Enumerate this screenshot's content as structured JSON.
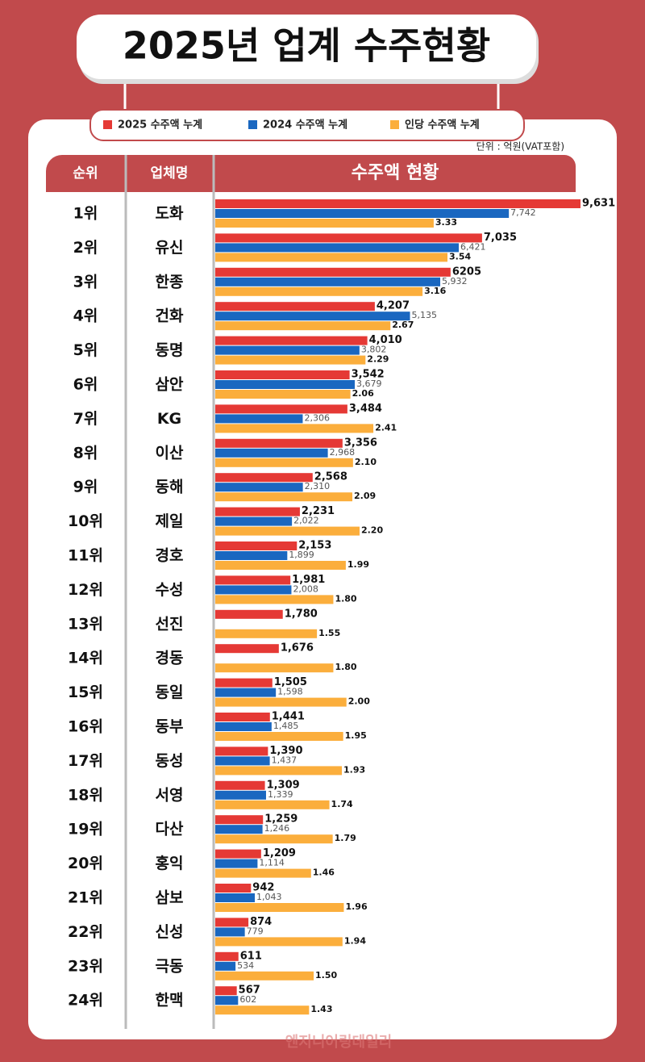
{
  "chart_data": {
    "type": "bar",
    "title": "2025년 업계 수주현황",
    "unit_note": "단위 : 억원(VAT포함)",
    "column_headers": [
      "순위",
      "업체명",
      "수주액 현황"
    ],
    "ranks": [
      "1위",
      "2위",
      "3위",
      "4위",
      "5위",
      "6위",
      "7위",
      "8위",
      "9위",
      "10위",
      "11위",
      "12위",
      "13위",
      "14위",
      "15위",
      "16위",
      "17위",
      "18위",
      "19위",
      "20위",
      "21위",
      "22위",
      "23위",
      "24위"
    ],
    "categories": [
      "도화",
      "유신",
      "한종",
      "건화",
      "동명",
      "삼안",
      "KG",
      "이산",
      "동해",
      "제일",
      "경호",
      "수성",
      "선진",
      "경동",
      "동일",
      "동부",
      "동성",
      "서영",
      "다산",
      "홍익",
      "삼보",
      "신성",
      "극동",
      "한맥"
    ],
    "series": [
      {
        "name": "2025 수주액 누계",
        "color": "#e53935",
        "values": [
          9631,
          7035,
          6205,
          4207,
          4010,
          3542,
          3484,
          3356,
          2568,
          2231,
          2153,
          1981,
          1780,
          1676,
          1505,
          1441,
          1390,
          1309,
          1259,
          1209,
          942,
          874,
          611,
          567
        ],
        "value_labels": [
          "9,631",
          "7,035",
          "6205",
          "4,207",
          "4,010",
          "3,542",
          "3,484",
          "3,356",
          "2,568",
          "2,231",
          "2,153",
          "1,981",
          "1,780",
          "1,676",
          "1,505",
          "1,441",
          "1,390",
          "1,309",
          "1,259",
          "1,209",
          "942",
          "874",
          "611",
          "567"
        ]
      },
      {
        "name": "2024 수주액 누계",
        "color": "#1a67c0",
        "values": [
          7742,
          6421,
          5932,
          5135,
          3802,
          3679,
          2306,
          2968,
          2310,
          2022,
          1899,
          2008,
          null,
          null,
          1598,
          1485,
          1437,
          1339,
          1246,
          1114,
          1043,
          779,
          534,
          602
        ],
        "value_labels": [
          "7,742",
          "6,421",
          "5,932",
          "5,135",
          "3,802",
          "3,679",
          "2,306",
          "2,968",
          "2,310",
          "2,022",
          "1,899",
          "2,008",
          null,
          null,
          "1,598",
          "1,485",
          "1,437",
          "1,339",
          "1,246",
          "1,114",
          "1,043",
          "779",
          "534",
          "602"
        ]
      },
      {
        "name": "인당 수주액 누계",
        "color": "#fbae3c",
        "values": [
          3.33,
          3.54,
          3.16,
          2.67,
          2.29,
          2.06,
          2.41,
          2.1,
          2.09,
          2.2,
          1.99,
          1.8,
          1.55,
          1.8,
          2,
          1.95,
          1.93,
          1.74,
          1.79,
          1.46,
          1.96,
          1.94,
          1.5,
          1.43
        ],
        "value_labels": [
          "3.33",
          "3.54",
          "3.16",
          "2.67",
          "2.29",
          "2.06",
          "2.41",
          "2.10",
          "2.09",
          "2.20",
          "1.99",
          "1.80",
          "1.55",
          "1.80",
          "2.00",
          "1.95",
          "1.93",
          "1.74",
          "1.79",
          "1.46",
          "1.96",
          "1.94",
          "1.50",
          "1.43"
        ]
      }
    ],
    "source": "엔지니어링데일리"
  }
}
